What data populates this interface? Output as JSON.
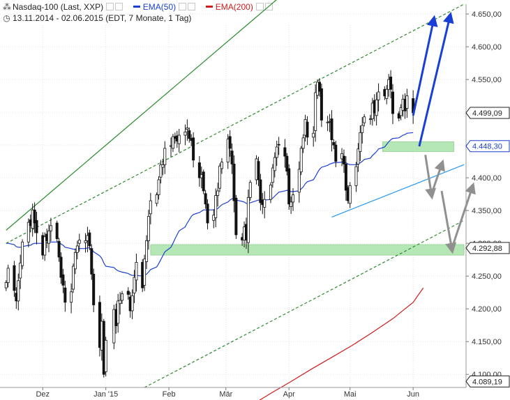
{
  "header": {
    "instrument": "Nasdaq-100 (Last, XXP)",
    "info_icon": "clock-icon",
    "period": "13.11.2014 - 02.06.2015 (EDT, 7 Monate, 1 Tag)",
    "legend": [
      {
        "label": "EMA(50)",
        "color": "#1a3fd6"
      },
      {
        "label": "EMA(200)",
        "color": "#d11b1b"
      }
    ]
  },
  "chart_data": {
    "type": "candlestick",
    "ylim": [
      4080,
      4665
    ],
    "x_tick_labels": [
      {
        "label": "Dez",
        "day": 18
      },
      {
        "label": "Jan '15",
        "day": 49
      },
      {
        "label": "Feb",
        "day": 80
      },
      {
        "label": "Mär",
        "day": 108
      },
      {
        "label": "Apr",
        "day": 139
      },
      {
        "label": "Mai",
        "day": 169
      },
      {
        "label": "Jun",
        "day": 200
      }
    ],
    "y_tick_labels": [
      "4.650,00",
      "4.600,00",
      "4.550,00",
      "4.500,00",
      "4.450,00",
      "4.400,00",
      "4.350,00",
      "4.300,00",
      "4.250,00",
      "4.200,00",
      "4.150,00",
      "4.100,00"
    ],
    "y_ticks": [
      4650,
      4600,
      4550,
      4500,
      4450,
      4400,
      4350,
      4300,
      4250,
      4200,
      4150,
      4100
    ],
    "price_markers": [
      {
        "label": "4.499,09",
        "value": 4499.09,
        "color": "#222222"
      },
      {
        "label": "4.448,30",
        "value": 4448.3,
        "color": "#1a3fd6"
      },
      {
        "label": "4.292,88",
        "value": 4292.88,
        "color": "#222222"
      },
      {
        "label": "4.089,19",
        "value": 4089.19,
        "color": "#222222"
      }
    ],
    "ohlc_days": [
      0,
      1,
      4,
      5,
      6,
      7,
      8,
      11,
      12,
      13,
      14,
      15,
      18,
      19,
      20,
      21,
      22,
      25,
      26,
      27,
      28,
      29,
      32,
      33,
      34,
      35,
      36,
      39,
      40,
      41,
      42,
      43,
      46,
      47,
      48,
      49,
      53,
      54,
      55,
      56,
      57,
      60,
      61,
      62,
      63,
      64,
      67,
      68,
      69,
      70,
      71,
      74,
      75,
      76,
      77,
      78,
      81,
      82,
      83,
      84,
      85,
      88,
      89,
      90,
      91,
      92,
      95,
      96,
      97,
      98,
      99,
      102,
      103,
      104,
      105,
      106,
      109,
      110,
      111,
      112,
      113,
      116,
      117,
      118,
      119,
      120,
      123,
      124,
      125,
      126,
      127,
      130,
      131,
      132,
      133,
      134,
      137,
      138,
      139,
      140,
      141,
      144,
      145,
      146,
      147,
      148,
      151,
      152,
      153,
      154,
      155,
      158,
      159,
      160,
      161,
      162,
      165,
      166,
      167,
      168,
      169,
      172,
      173,
      174,
      175,
      176,
      179,
      180,
      181,
      182,
      183,
      186,
      187,
      188,
      189,
      190,
      193,
      194,
      195,
      196,
      197,
      200
    ],
    "ohlc_close": [
      4240,
      4262,
      4228,
      4212,
      4243,
      4270,
      4302,
      4332,
      4327,
      4351,
      4331,
      4316,
      4282,
      4310,
      4304,
      4319,
      4327,
      4307,
      4279,
      4248,
      4236,
      4210,
      4226,
      4265,
      4286,
      4296,
      4305,
      4304,
      4312,
      4296,
      4253,
      4206,
      4141,
      4181,
      4100,
      4152,
      4199,
      4174,
      4212,
      4213,
      4223,
      4222,
      4197,
      4220,
      4248,
      4271,
      4232,
      4276,
      4304,
      4341,
      4365,
      4374,
      4397,
      4420,
      4420,
      4445,
      4449,
      4463,
      4460,
      4456,
      4465,
      4470,
      4476,
      4460,
      4457,
      4427,
      4400,
      4405,
      4380,
      4360,
      4331,
      4343,
      4373,
      4380,
      4418,
      4424,
      4459,
      4445,
      4421,
      4365,
      4313,
      4305,
      4325,
      4305,
      4370,
      4393,
      4429,
      4397,
      4362,
      4359,
      4367,
      4389,
      4415,
      4431,
      4447,
      4450,
      4433,
      4410,
      4360,
      4363,
      4374,
      4413,
      4445,
      4461,
      4489,
      4462,
      4468,
      4530,
      4546,
      4532,
      4488,
      4485,
      4486,
      4458,
      4450,
      4425,
      4437,
      4421,
      4381,
      4365,
      4388,
      4417,
      4444,
      4469,
      4480,
      4493,
      4490,
      4514,
      4499,
      4519,
      4531,
      4525,
      4535,
      4550,
      4535,
      4498,
      4491,
      4507,
      4520,
      4502,
      4525,
      4499.09
    ],
    "ema50": [
      4300,
      4300,
      4298,
      4295,
      4294,
      4294,
      4295,
      4297,
      4297,
      4299,
      4300,
      4300,
      4300,
      4300,
      4301,
      4301,
      4302,
      4302,
      4301,
      4299,
      4297,
      4294,
      4292,
      4291,
      4291,
      4291,
      4292,
      4292,
      4293,
      4293,
      4291,
      4287,
      4281,
      4277,
      4270,
      4265,
      4263,
      4260,
      4258,
      4257,
      4256,
      4254,
      4252,
      4251,
      4251,
      4251,
      4250,
      4251,
      4253,
      4256,
      4260,
      4264,
      4269,
      4275,
      4281,
      4287,
      4294,
      4300,
      4307,
      4313,
      4319,
      4325,
      4331,
      4336,
      4341,
      4344,
      4347,
      4349,
      4351,
      4351,
      4351,
      4351,
      4352,
      4353,
      4356,
      4359,
      4363,
      4366,
      4368,
      4368,
      4366,
      4364,
      4363,
      4361,
      4361,
      4362,
      4365,
      4366,
      4366,
      4366,
      4366,
      4367,
      4369,
      4372,
      4375,
      4378,
      4380,
      4381,
      4380,
      4379,
      4379,
      4380,
      4383,
      4386,
      4391,
      4394,
      4397,
      4402,
      4408,
      4413,
      4416,
      4419,
      4421,
      4422,
      4423,
      4423,
      4424,
      4424,
      4423,
      4421,
      4420,
      4420,
      4421,
      4423,
      4425,
      4428,
      4430,
      4434,
      4437,
      4440,
      4444,
      4447,
      4451,
      4455,
      4458,
      4460,
      4461,
      4463,
      4465,
      4466,
      4468,
      4469
    ],
    "ema200": [
      {
        "day": 110,
        "value": 4038
      },
      {
        "day": 120,
        "value": 4052
      },
      {
        "day": 130,
        "value": 4071
      },
      {
        "day": 140,
        "value": 4089
      },
      {
        "day": 150,
        "value": 4108
      },
      {
        "day": 160,
        "value": 4126
      },
      {
        "day": 170,
        "value": 4144
      },
      {
        "day": 180,
        "value": 4164
      },
      {
        "day": 190,
        "value": 4185
      },
      {
        "day": 200,
        "value": 4210
      },
      {
        "day": 205,
        "value": 4232
      }
    ],
    "trend_lines": [
      {
        "name": "long-term-support-green-solid",
        "color": "#2a8a2a",
        "dash": "",
        "points": [
          {
            "day": 0,
            "value": 4320
          },
          {
            "day": 170,
            "value": 4770
          }
        ]
      },
      {
        "name": "channel-upper-green-dashed",
        "color": "#2a8a2a",
        "dash": "4,3",
        "points": [
          {
            "day": 0,
            "value": 4300
          },
          {
            "day": 225,
            "value": 4665
          }
        ]
      },
      {
        "name": "channel-lower-green-dashed",
        "color": "#2a8a2a",
        "dash": "4,3",
        "points": [
          {
            "day": 68,
            "value": 4080
          },
          {
            "day": 225,
            "value": 4335
          }
        ]
      },
      {
        "name": "short-term-support-blue",
        "color": "#2196f3",
        "dash": "",
        "points": [
          {
            "day": 160,
            "value": 4340
          },
          {
            "day": 225,
            "value": 4420
          }
        ]
      }
    ],
    "zones": [
      {
        "name": "support-zone-upper",
        "color": "#b5e6b5",
        "from_day": 185,
        "to_day": 220,
        "low": 4440,
        "high": 4455
      },
      {
        "name": "support-zone-lower",
        "color": "#b5e6b5",
        "from_day": 71,
        "to_day": 225,
        "low": 4282,
        "high": 4298
      }
    ],
    "arrows": [
      {
        "name": "bullish-arrow-1",
        "color": "#1a3fd6",
        "points": [
          {
            "day": 200,
            "value": 4495
          },
          {
            "day": 210,
            "value": 4640
          }
        ]
      },
      {
        "name": "bullish-arrow-2",
        "color": "#1a3fd6",
        "points": [
          {
            "day": 203,
            "value": 4448
          },
          {
            "day": 218,
            "value": 4645
          }
        ]
      },
      {
        "name": "pullback-arrow-1",
        "color": "#909090",
        "points": [
          {
            "day": 206,
            "value": 4435
          },
          {
            "day": 209,
            "value": 4375
          }
        ]
      },
      {
        "name": "rebound-arrow-1",
        "color": "#909090",
        "points": [
          {
            "day": 209,
            "value": 4375
          },
          {
            "day": 214,
            "value": 4420
          }
        ]
      },
      {
        "name": "pullback-arrow-2",
        "color": "#909090",
        "points": [
          {
            "day": 214,
            "value": 4380
          },
          {
            "day": 219,
            "value": 4292
          }
        ]
      },
      {
        "name": "rebound-arrow-2",
        "color": "#909090",
        "points": [
          {
            "day": 219,
            "value": 4292
          },
          {
            "day": 229,
            "value": 4385
          }
        ]
      }
    ]
  }
}
